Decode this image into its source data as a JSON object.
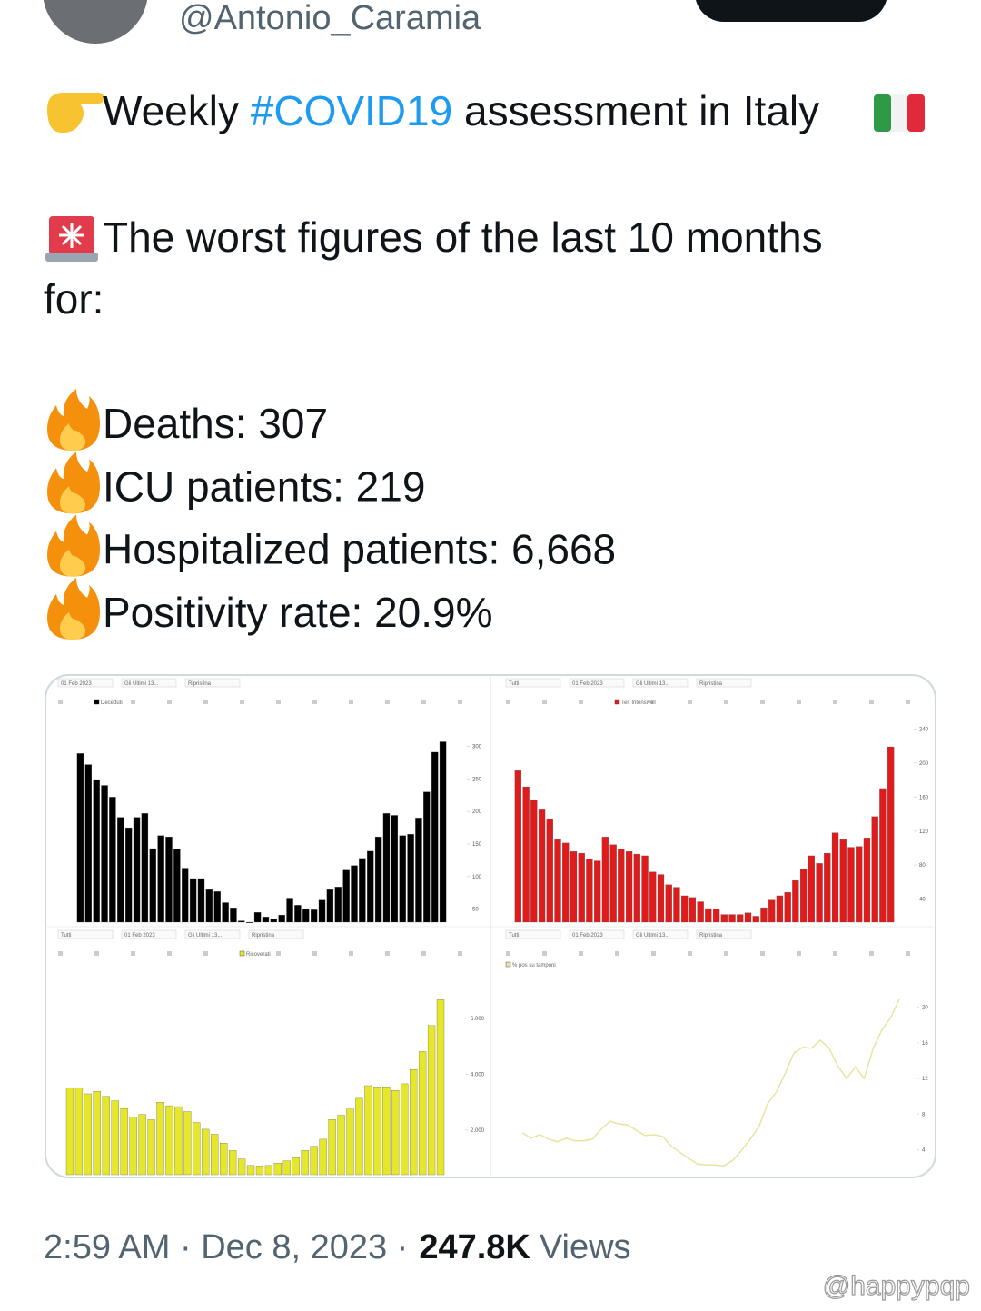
{
  "tweet": {
    "handle": "@Antonio_Caramia",
    "line1": [
      "Weekly ",
      "#COVID19",
      " assessment in Italy"
    ],
    "line2": [
      "The worst figures of the last 10 months",
      "for:"
    ],
    "stats": [
      "Deaths: 307",
      "ICU patients: 219",
      "Hospitalized patients: 6,668",
      "Positivity rate: 20.9%"
    ],
    "meta": [
      "2:59 AM · Dec 8, 2023 ·",
      "247.8K",
      "Views"
    ],
    "watermark": "@happypqp"
  },
  "chart_data": [
    {
      "type": "bar",
      "name": "Deceduti",
      "color": "#000000",
      "controls": [
        "01 Feb 2023",
        "Gli Ultimi 13...",
        "Ripristina"
      ],
      "values": [
        289,
        272,
        249,
        240,
        222,
        191,
        175,
        191,
        197,
        143,
        163,
        161,
        142,
        113,
        97,
        97,
        80,
        77,
        60,
        52,
        32,
        29,
        45,
        38,
        35,
        41,
        67,
        56,
        50,
        49,
        64,
        80,
        84,
        110,
        117,
        128,
        139,
        161,
        197,
        194,
        163,
        165,
        190,
        230,
        291,
        307
      ],
      "ylim": [
        30,
        330
      ],
      "yticks": [
        50,
        100,
        150,
        200,
        250,
        300
      ]
    },
    {
      "type": "bar",
      "name": "Ter. Intensive",
      "color": "#e01b1b",
      "controls": [
        "Tutti",
        "01 Feb 2023",
        "Gli Ultimi 13...",
        "Ripristina"
      ],
      "values": [
        191,
        172,
        157,
        145,
        134,
        110,
        106,
        96,
        94,
        87,
        85,
        113,
        104,
        99,
        96,
        93,
        91,
        72,
        69,
        57,
        54,
        44,
        42,
        37,
        29,
        28,
        22,
        22,
        22,
        24,
        20,
        30,
        39,
        44,
        48,
        62,
        75,
        91,
        82,
        94,
        118,
        110,
        101,
        102,
        112,
        137,
        170,
        219
      ],
      "ylim": [
        13,
        250
      ],
      "yticks": [
        40,
        80,
        120,
        160,
        200,
        240
      ]
    },
    {
      "type": "bar",
      "name": "Ricoverati",
      "color": "#e6e62a",
      "controls": [
        "Tutti",
        "01 Feb 2023",
        "Gli Ultimi 13...",
        "Ripristina"
      ],
      "values": [
        3497,
        3518,
        3297,
        3384,
        3210,
        3049,
        2772,
        2457,
        2560,
        2371,
        2998,
        2871,
        2839,
        2662,
        2272,
        2029,
        1850,
        1532,
        1265,
        967,
        732,
        715,
        730,
        815,
        896,
        1010,
        1272,
        1419,
        1672,
        2378,
        2531,
        2754,
        3136,
        3589,
        3546,
        3551,
        3420,
        3656,
        4167,
        4811,
        5741,
        6668
      ],
      "ylim": [
        400,
        7200
      ],
      "yticks": [
        {
          "value": 2000,
          "label": "2.000"
        },
        {
          "value": 4000,
          "label": "4.000"
        },
        {
          "value": 6000,
          "label": "6.000"
        }
      ]
    },
    {
      "type": "line",
      "name": "% pos su tamponi",
      "color": "#e8e4a0",
      "controls": [
        "Tutti",
        "01 Feb 2023",
        "Gli Ultimi 13...",
        "Ripristina"
      ],
      "values": [
        5.9,
        5.3,
        5.7,
        5.2,
        4.9,
        5.3,
        5.0,
        5.0,
        5.2,
        6.3,
        7.2,
        6.9,
        6.8,
        6.2,
        5.6,
        5.7,
        5.5,
        4.4,
        3.7,
        3.0,
        2.4,
        2.3,
        2.3,
        2.2,
        2.8,
        3.9,
        5.2,
        6.6,
        9.2,
        10.5,
        12.6,
        14.9,
        15.5,
        15.4,
        16.3,
        15.4,
        13.4,
        12.0,
        13.3,
        12.0,
        15.3,
        17.4,
        18.8,
        20.9
      ],
      "ylim": [
        1.2,
        22
      ],
      "yticks": [
        4,
        8,
        12,
        16,
        20
      ]
    }
  ]
}
